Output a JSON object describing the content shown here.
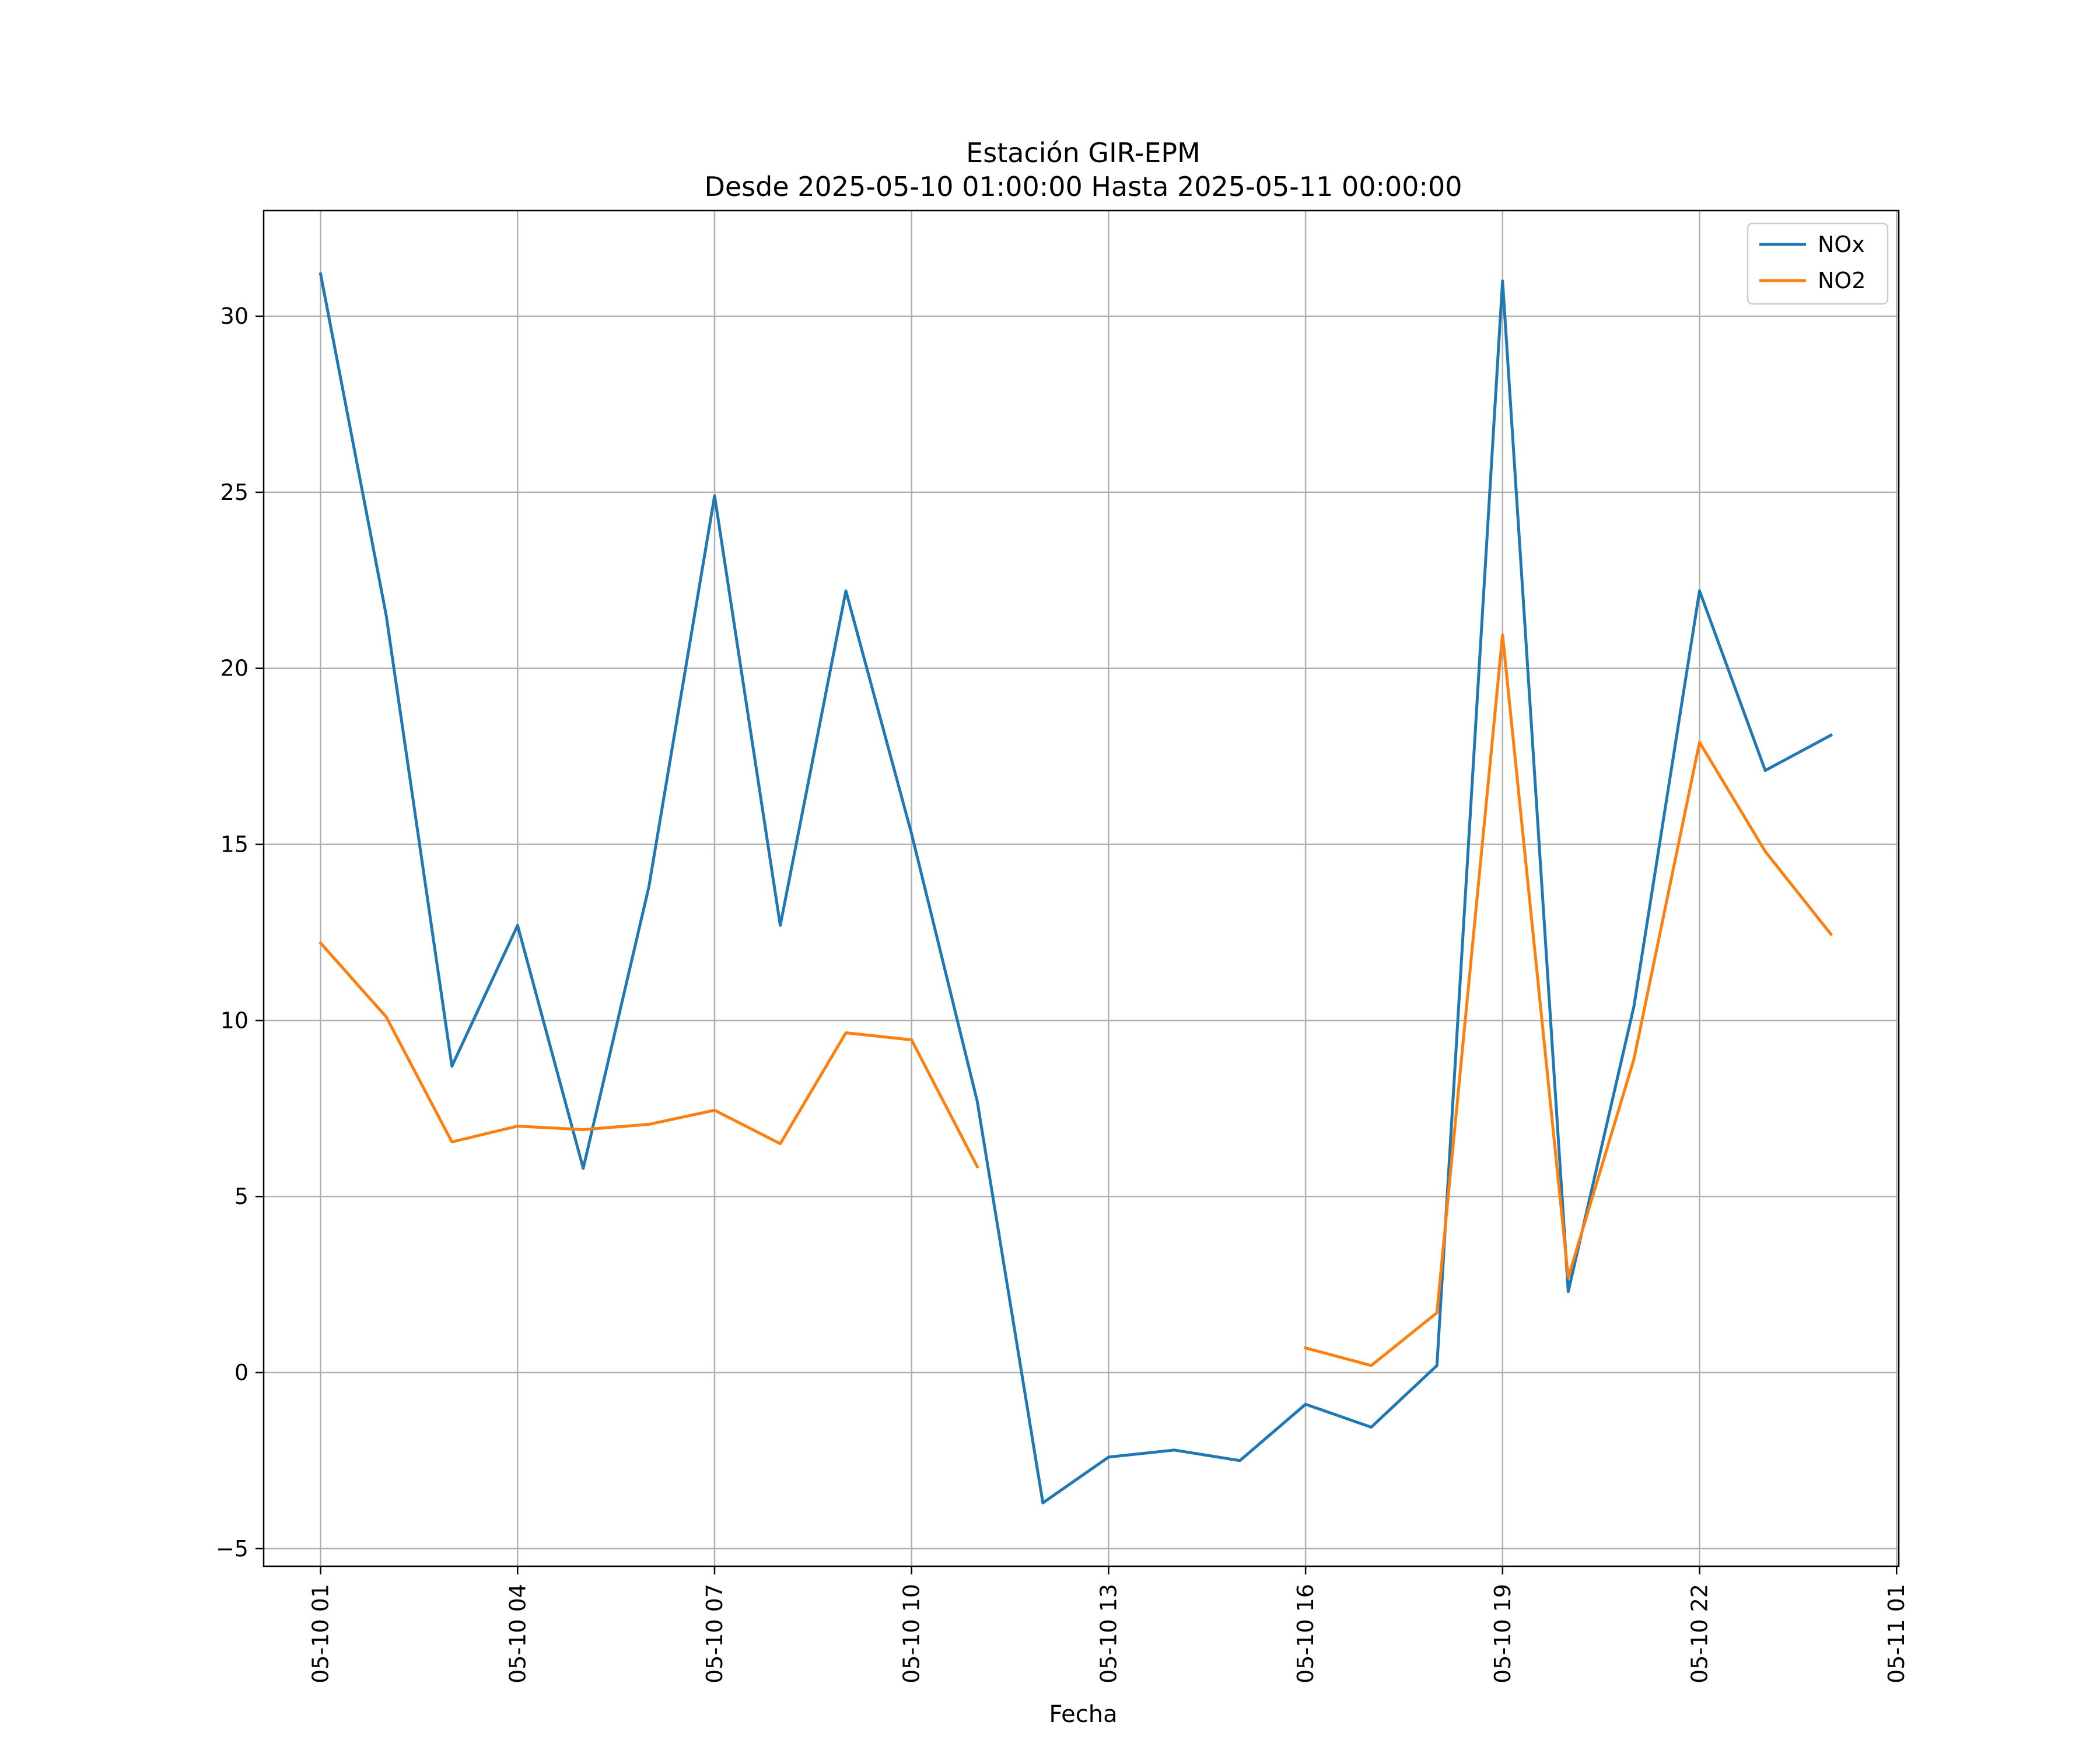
{
  "chart_data": {
    "type": "line",
    "title": "Estación GIR-EPM",
    "subtitle": "Desde 2025-05-10 01:00:00 Hasta 2025-05-11 00:00:00",
    "xlabel": "Fecha",
    "ylabel": "",
    "x_unit": "hour",
    "x": [
      "2025-05-10 01:00",
      "2025-05-10 02:00",
      "2025-05-10 03:00",
      "2025-05-10 04:00",
      "2025-05-10 05:00",
      "2025-05-10 06:00",
      "2025-05-10 07:00",
      "2025-05-10 08:00",
      "2025-05-10 09:00",
      "2025-05-10 10:00",
      "2025-05-10 11:00",
      "2025-05-10 12:00",
      "2025-05-10 13:00",
      "2025-05-10 14:00",
      "2025-05-10 15:00",
      "2025-05-10 16:00",
      "2025-05-10 17:00",
      "2025-05-10 18:00",
      "2025-05-10 19:00",
      "2025-05-10 20:00",
      "2025-05-10 21:00",
      "2025-05-10 22:00",
      "2025-05-10 23:00",
      "2025-05-11 00:00"
    ],
    "xlim": [
      "2025-05-10 00:08",
      "2025-05-11 01:02"
    ],
    "ylim": [
      -5.5,
      33
    ],
    "x_ticks": [
      {
        "label": "05-10 01",
        "value": "2025-05-10 01:00"
      },
      {
        "label": "05-10 04",
        "value": "2025-05-10 04:00"
      },
      {
        "label": "05-10 07",
        "value": "2025-05-10 07:00"
      },
      {
        "label": "05-10 10",
        "value": "2025-05-10 10:00"
      },
      {
        "label": "05-10 13",
        "value": "2025-05-10 13:00"
      },
      {
        "label": "05-10 16",
        "value": "2025-05-10 16:00"
      },
      {
        "label": "05-10 19",
        "value": "2025-05-10 19:00"
      },
      {
        "label": "05-10 22",
        "value": "2025-05-10 22:00"
      },
      {
        "label": "05-11 01",
        "value": "2025-05-11 01:00"
      }
    ],
    "y_ticks": [
      {
        "label": "−5",
        "value": -5
      },
      {
        "label": "0",
        "value": 0
      },
      {
        "label": "5",
        "value": 5
      },
      {
        "label": "10",
        "value": 10
      },
      {
        "label": "15",
        "value": 15
      },
      {
        "label": "20",
        "value": 20
      },
      {
        "label": "25",
        "value": 25
      },
      {
        "label": "30",
        "value": 30
      }
    ],
    "grid": true,
    "legend_position": "top-right",
    "series": [
      {
        "name": "NOx",
        "color": "#1f77b4",
        "values": [
          31.2,
          21.5,
          8.7,
          12.7,
          5.8,
          13.8,
          24.9,
          12.7,
          22.2,
          15.3,
          7.7,
          -3.7,
          -2.4,
          -2.2,
          -2.5,
          -0.9,
          -1.55,
          0.2,
          31.0,
          2.3,
          10.4,
          22.2,
          17.1,
          18.1
        ]
      },
      {
        "name": "NO2",
        "color": "#ff7f0e",
        "values": [
          12.2,
          10.1,
          6.55,
          7.0,
          6.9,
          7.05,
          7.45,
          6.5,
          9.65,
          9.45,
          5.85,
          null,
          null,
          null,
          null,
          0.7,
          0.2,
          1.7,
          20.95,
          2.7,
          8.9,
          17.9,
          14.8,
          12.45
        ]
      }
    ]
  }
}
